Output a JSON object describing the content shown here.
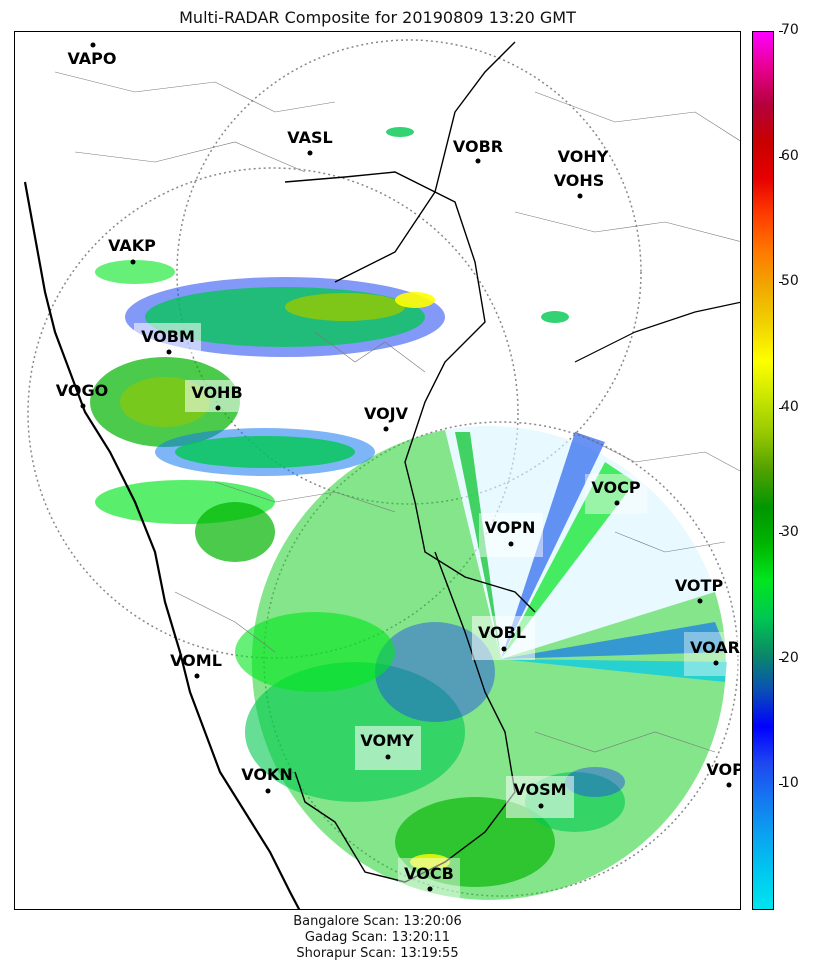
{
  "title": "Multi-RADAR Composite for 20190809 13:20 GMT",
  "footer": {
    "line1": "Bangalore Scan: 13:20:06",
    "line2": "Gadag Scan: 13:20:11",
    "line3": "Shorapur Scan: 13:19:55"
  },
  "colorbar": {
    "min": 0,
    "max": 70,
    "ticks": [
      "10",
      "20",
      "30",
      "40",
      "50",
      "60",
      "70"
    ],
    "colors": [
      "#00e5ee",
      "#00c8f0",
      "#0aa4f0",
      "#1478f0",
      "#1e46f0",
      "#0000ff",
      "#0a50b4",
      "#0a8c64",
      "#00c850",
      "#00e61e",
      "#00b400",
      "#009600",
      "#50a000",
      "#96c800",
      "#c8e600",
      "#ffff00",
      "#f0d200",
      "#f0aa00",
      "#ff7800",
      "#ff3c00",
      "#e60000",
      "#c80000",
      "#b4003c",
      "#e6008c",
      "#ff00ff"
    ]
  },
  "stations": [
    {
      "id": "VAPO",
      "label": "VAPO"
    },
    {
      "id": "VASL",
      "label": "VASL"
    },
    {
      "id": "VOBR",
      "label": "VOBR"
    },
    {
      "id": "VOHY",
      "label": "VOHY"
    },
    {
      "id": "VOHS",
      "label": "VOHS"
    },
    {
      "id": "VAKP",
      "label": "VAKP"
    },
    {
      "id": "VOBM",
      "label": "VOBM"
    },
    {
      "id": "VOGO",
      "label": "VOGO"
    },
    {
      "id": "VOHB",
      "label": "VOHB"
    },
    {
      "id": "VOJV",
      "label": "VOJV"
    },
    {
      "id": "VOCP",
      "label": "VOCP"
    },
    {
      "id": "VOPN",
      "label": "VOPN"
    },
    {
      "id": "VOTP",
      "label": "VOTP"
    },
    {
      "id": "VOBL",
      "label": "VOBL"
    },
    {
      "id": "VOAR",
      "label": "VOAR"
    },
    {
      "id": "VOML",
      "label": "VOML"
    },
    {
      "id": "VOMY",
      "label": "VOMY"
    },
    {
      "id": "VOKN",
      "label": "VOKN"
    },
    {
      "id": "VOPC",
      "label": "VOPC"
    },
    {
      "id": "VOSM",
      "label": "VOSM"
    },
    {
      "id": "VOCB",
      "label": "VOCB"
    }
  ]
}
